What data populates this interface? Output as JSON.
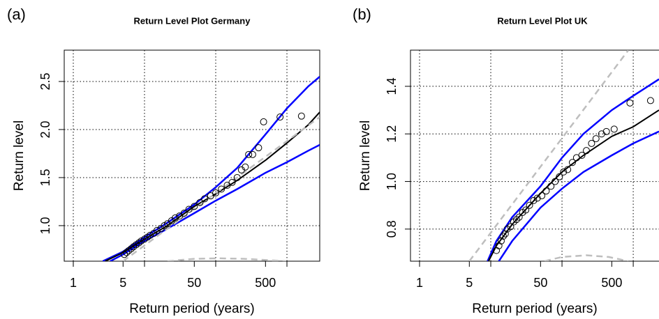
{
  "chart_data": [
    {
      "type": "line",
      "panel_label": "(a)",
      "title": "Return Level Plot Germany",
      "xlabel": "Return period (years)",
      "ylabel": "Return level",
      "xlog": true,
      "xlim": [
        0.746,
        2887
      ],
      "ylim": [
        0.63,
        2.826
      ],
      "xticks": [
        1,
        5,
        50,
        500
      ],
      "xgrid": [
        1,
        10,
        100,
        1000
      ],
      "yticks": [
        {
          "value": 1,
          "label": "1.0"
        },
        1.5,
        {
          "value": 2,
          "label": "2.0"
        },
        2.5
      ],
      "grid": true,
      "series": [
        {
          "kind": "line",
          "color": "#0000ff",
          "dash": false,
          "x": [
            2.6,
            5,
            10,
            20,
            50,
            100,
            200,
            500,
            1000,
            2000,
            2887
          ],
          "values": [
            0.63,
            0.73,
            0.88,
            1.02,
            1.22,
            1.4,
            1.6,
            1.95,
            2.22,
            2.45,
            2.55
          ]
        },
        {
          "kind": "line",
          "color": "#0000ff",
          "dash": false,
          "x": [
            3.3,
            5,
            10,
            20,
            50,
            100,
            200,
            500,
            1000,
            2000,
            2887
          ],
          "values": [
            0.63,
            0.7,
            0.84,
            0.96,
            1.13,
            1.26,
            1.38,
            1.55,
            1.66,
            1.78,
            1.84
          ]
        },
        {
          "kind": "line",
          "color": "#000000",
          "dash": false,
          "x": [
            2.8,
            5,
            10,
            20,
            50,
            100,
            200,
            500,
            1000,
            2000,
            2887
          ],
          "values": [
            0.63,
            0.72,
            0.86,
            0.99,
            1.2,
            1.33,
            1.47,
            1.68,
            1.86,
            2.05,
            2.18
          ]
        },
        {
          "kind": "line",
          "color": "#bebebe",
          "dash": true,
          "x": [
            5,
            2887
          ],
          "values": [
            0.63,
            2.13
          ]
        },
        {
          "kind": "line",
          "color": "#bebebe",
          "dash": true,
          "x": [
            21,
            50,
            110,
            250,
            980
          ],
          "values": [
            0.63,
            0.655,
            0.66,
            0.655,
            0.63
          ]
        },
        {
          "kind": "points",
          "color": "#000000",
          "x": [
            5.2,
            5.6,
            6,
            6.5,
            7,
            7.6,
            8.3,
            9,
            10,
            11,
            12,
            13.5,
            15,
            17,
            19,
            21,
            24,
            27,
            31,
            36,
            42,
            50,
            60,
            70,
            85,
            100,
            120,
            145,
            170,
            200,
            230,
            260,
            290,
            330,
            400,
            470,
            800,
            1600
          ],
          "values": [
            0.7,
            0.72,
            0.74,
            0.76,
            0.78,
            0.8,
            0.82,
            0.84,
            0.86,
            0.88,
            0.9,
            0.92,
            0.95,
            0.97,
            1.0,
            1.02,
            1.05,
            1.08,
            1.1,
            1.13,
            1.17,
            1.2,
            1.24,
            1.28,
            1.31,
            1.34,
            1.38,
            1.42,
            1.45,
            1.5,
            1.58,
            1.61,
            1.74,
            1.74,
            1.81,
            2.08,
            2.13,
            2.14
          ]
        }
      ]
    },
    {
      "type": "line",
      "panel_label": "(b)",
      "title": "Return Level Plot UK",
      "xlabel": "Return period (years)",
      "ylabel": "Return level",
      "xlog": true,
      "xlim": [
        0.746,
        2300
      ],
      "ylim": [
        0.665,
        1.552
      ],
      "xticks": [
        1,
        5,
        50,
        500
      ],
      "xgrid": [
        1,
        10,
        100,
        1000
      ],
      "yticks": [
        0.8,
        {
          "value": 1,
          "label": "1.0"
        },
        1.2,
        1.4
      ],
      "grid": true,
      "series": [
        {
          "kind": "line",
          "color": "#0000ff",
          "dash": false,
          "x": [
            9,
            12,
            20,
            50,
            100,
            200,
            500,
            1000,
            2300
          ],
          "values": [
            0.665,
            0.75,
            0.85,
            0.98,
            1.1,
            1.2,
            1.3,
            1.36,
            1.43
          ]
        },
        {
          "kind": "line",
          "color": "#0000ff",
          "dash": false,
          "x": [
            13,
            20,
            50,
            100,
            200,
            500,
            1000,
            2300
          ],
          "values": [
            0.665,
            0.75,
            0.89,
            0.97,
            1.04,
            1.11,
            1.16,
            1.21
          ]
        },
        {
          "kind": "line",
          "color": "#000000",
          "dash": false,
          "x": [
            9.3,
            12,
            20,
            50,
            100,
            200,
            500,
            1000,
            2300
          ],
          "values": [
            0.665,
            0.73,
            0.82,
            0.95,
            1.04,
            1.11,
            1.19,
            1.23,
            1.3
          ]
        },
        {
          "kind": "line",
          "color": "#bebebe",
          "dash": true,
          "x": [
            5,
            855
          ],
          "values": [
            0.665,
            1.552
          ]
        },
        {
          "kind": "line",
          "color": "#bebebe",
          "dash": true,
          "x": [
            57,
            100,
            220,
            450,
            855
          ],
          "values": [
            0.665,
            0.683,
            0.69,
            0.683,
            0.665
          ]
        },
        {
          "kind": "points",
          "color": "#000000",
          "x": [
            12,
            13,
            14,
            15,
            16,
            17,
            19,
            21,
            23,
            25,
            28,
            31,
            35,
            40,
            45,
            52,
            60,
            70,
            80,
            92,
            105,
            120,
            140,
            160,
            190,
            220,
            260,
            300,
            360,
            420,
            540,
            900,
            1750
          ],
          "values": [
            0.71,
            0.73,
            0.75,
            0.77,
            0.78,
            0.8,
            0.81,
            0.83,
            0.84,
            0.85,
            0.87,
            0.88,
            0.9,
            0.92,
            0.93,
            0.94,
            0.96,
            0.98,
            1.0,
            1.02,
            1.04,
            1.05,
            1.08,
            1.1,
            1.11,
            1.13,
            1.16,
            1.18,
            1.2,
            1.21,
            1.22,
            1.33,
            1.34
          ]
        }
      ]
    }
  ]
}
